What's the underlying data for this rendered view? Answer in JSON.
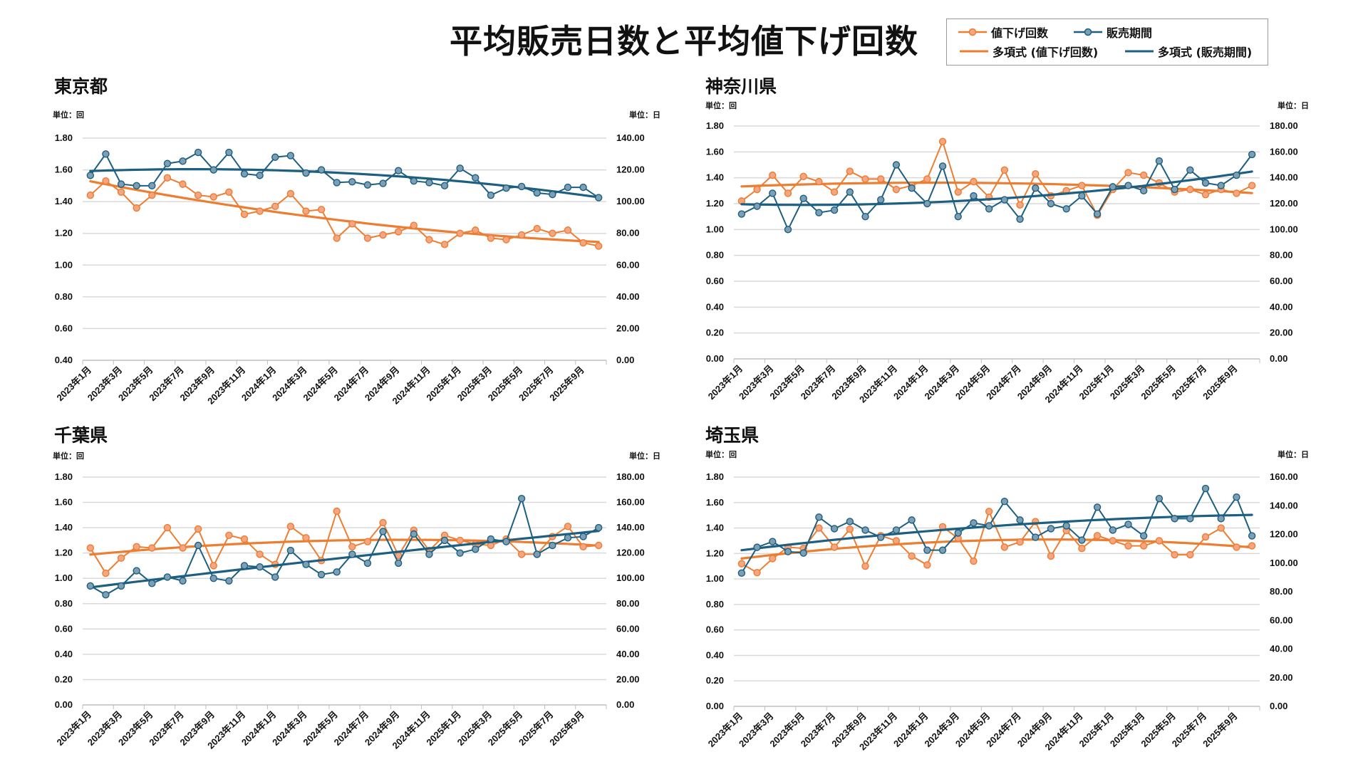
{
  "title": "平均販売日数と平均値下げ回数",
  "legend": {
    "markdown_count": "値下げ回数",
    "selling_period": "販売期間",
    "trend_markdown": "多項式 (値下げ回数)",
    "trend_period": "多項式 (販売期間)"
  },
  "colors": {
    "markdown": "#ed7d31",
    "markdown_marker": "#f4a582",
    "period": "#1c5f80",
    "period_marker": "#7e9fb3",
    "grid": "#d9d9d9"
  },
  "chart_data": [
    {
      "type": "line",
      "title": "東京都",
      "left_unit": "単位：回",
      "right_unit": "単位：日",
      "ylim_left": [
        0.4,
        1.8
      ],
      "ylim_right": [
        0,
        140
      ],
      "left_step": 0.2,
      "right_step": 20,
      "left_ticks": [
        "0.40",
        "0.60",
        "0.80",
        "1.00",
        "1.20",
        "1.40",
        "1.60",
        "1.80"
      ],
      "right_ticks": [
        "0.00",
        "20.00",
        "40.00",
        "60.00",
        "80.00",
        "100.00",
        "120.00",
        "140.00"
      ],
      "x_tick_labels": [
        "2023年1月",
        "2023年3月",
        "2023年5月",
        "2023年7月",
        "2023年9月",
        "2023年11月",
        "2024年1月",
        "2024年3月",
        "2024年5月",
        "2024年7月",
        "2024年9月",
        "2024年11月",
        "2025年1月",
        "2025年3月",
        "2025年5月",
        "2025年7月",
        "2025年9月"
      ],
      "grid": true,
      "trendline": "polynomial",
      "series": [
        {
          "name": "値下げ回数",
          "axis": "left",
          "values": [
            1.44,
            1.53,
            1.46,
            1.36,
            1.44,
            1.55,
            1.51,
            1.44,
            1.43,
            1.46,
            1.32,
            1.34,
            1.37,
            1.45,
            1.34,
            1.35,
            1.17,
            1.26,
            1.17,
            1.19,
            1.21,
            1.25,
            1.16,
            1.13,
            1.2,
            1.22,
            1.17,
            1.16,
            1.19,
            1.23,
            1.2,
            1.22,
            1.14,
            1.12
          ]
        },
        {
          "name": "販売期間",
          "axis": "right",
          "values": [
            116.5,
            130,
            111,
            110,
            110,
            124,
            125.5,
            131,
            120,
            131,
            117.5,
            116.5,
            128,
            129,
            118,
            120,
            112,
            112.5,
            110.5,
            111.5,
            119.5,
            113,
            112,
            110,
            121,
            115,
            104,
            108.5,
            109.5,
            105.5,
            104.5,
            109,
            109,
            102.5
          ]
        }
      ]
    },
    {
      "type": "line",
      "title": "神奈川県",
      "left_unit": "単位：回",
      "right_unit": "単位：日",
      "ylim_left": [
        0,
        1.8
      ],
      "ylim_right": [
        0,
        180
      ],
      "left_ticks": [
        "0.00",
        "0.20",
        "0.40",
        "0.60",
        "0.80",
        "1.00",
        "1.20",
        "1.40",
        "1.60",
        "1.80"
      ],
      "right_ticks": [
        "0.00",
        "20.00",
        "40.00",
        "60.00",
        "80.00",
        "100.00",
        "120.00",
        "140.00",
        "160.00",
        "180.00"
      ],
      "x_tick_labels": [
        "2023年1月",
        "2023年3月",
        "2023年5月",
        "2023年7月",
        "2023年9月",
        "2023年11月",
        "2024年1月",
        "2024年3月",
        "2024年5月",
        "2024年7月",
        "2024年9月",
        "2024年11月",
        "2025年1月",
        "2025年3月",
        "2025年5月",
        "2025年7月",
        "2025年9月"
      ],
      "grid": true,
      "trendline": "polynomial",
      "series": [
        {
          "name": "値下げ回数",
          "axis": "left",
          "values": [
            1.22,
            1.31,
            1.42,
            1.28,
            1.41,
            1.37,
            1.29,
            1.45,
            1.39,
            1.39,
            1.31,
            1.34,
            1.39,
            1.68,
            1.29,
            1.37,
            1.25,
            1.46,
            1.19,
            1.43,
            1.26,
            1.3,
            1.34,
            1.11,
            1.31,
            1.44,
            1.42,
            1.36,
            1.29,
            1.31,
            1.27,
            1.31,
            1.28,
            1.34
          ]
        },
        {
          "name": "販売期間",
          "axis": "right",
          "values": [
            112,
            118,
            128,
            100,
            124,
            113,
            115,
            129,
            110,
            123,
            150,
            132,
            120,
            149,
            110,
            126,
            116,
            123,
            108,
            132,
            120,
            116,
            126,
            112,
            133,
            134,
            130,
            153,
            131,
            146,
            136,
            134,
            142,
            158
          ]
        }
      ]
    },
    {
      "type": "line",
      "title": "千葉県",
      "left_unit": "単位：回",
      "right_unit": "単位：日",
      "ylim_left": [
        0,
        1.8
      ],
      "ylim_right": [
        0,
        180
      ],
      "left_ticks": [
        "0.00",
        "0.20",
        "0.40",
        "0.60",
        "0.80",
        "1.00",
        "1.20",
        "1.40",
        "1.60",
        "1.80"
      ],
      "right_ticks": [
        "0.00",
        "20.00",
        "40.00",
        "60.00",
        "80.00",
        "100.00",
        "120.00",
        "140.00",
        "160.00",
        "180.00"
      ],
      "x_tick_labels": [
        "2023年1月",
        "2023年3月",
        "2023年5月",
        "2023年7月",
        "2023年9月",
        "2023年11月",
        "2024年1月",
        "2024年3月",
        "2024年5月",
        "2024年7月",
        "2024年9月",
        "2024年11月",
        "2025年1月",
        "2025年3月",
        "2025年5月",
        "2025年7月",
        "2025年9月"
      ],
      "grid": true,
      "trendline": "polynomial",
      "series": [
        {
          "name": "値下げ回数",
          "axis": "left",
          "values": [
            1.24,
            1.04,
            1.16,
            1.25,
            1.24,
            1.4,
            1.24,
            1.39,
            1.1,
            1.34,
            1.31,
            1.19,
            1.11,
            1.41,
            1.32,
            1.14,
            1.53,
            1.25,
            1.29,
            1.44,
            1.18,
            1.38,
            1.22,
            1.34,
            1.3,
            1.27,
            1.26,
            1.31,
            1.19,
            1.19,
            1.33,
            1.41,
            1.25,
            1.26
          ]
        },
        {
          "name": "販売期間",
          "axis": "right",
          "values": [
            94,
            87,
            94,
            106,
            96,
            101,
            98,
            126,
            100,
            98,
            110,
            109,
            101,
            122,
            111,
            103,
            105,
            119,
            112,
            137,
            112,
            135,
            119,
            130,
            120,
            123,
            131,
            129,
            163,
            119,
            126,
            132,
            133,
            140
          ]
        }
      ]
    },
    {
      "type": "line",
      "title": "埼玉県",
      "left_unit": "単位：回",
      "right_unit": "単位：日",
      "ylim_left": [
        0,
        1.8
      ],
      "ylim_right": [
        0,
        160
      ],
      "left_ticks": [
        "0.00",
        "0.20",
        "0.40",
        "0.60",
        "0.80",
        "1.00",
        "1.20",
        "1.40",
        "1.60",
        "1.80"
      ],
      "right_ticks": [
        "0.00",
        "20.00",
        "40.00",
        "60.00",
        "80.00",
        "100.00",
        "120.00",
        "140.00",
        "160.00"
      ],
      "x_tick_labels": [
        "2023年1月",
        "2023年3月",
        "2023年5月",
        "2023年7月",
        "2023年9月",
        "2023年11月",
        "2024年1月",
        "2024年3月",
        "2024年5月",
        "2024年7月",
        "2024年9月",
        "2024年11月",
        "2025年1月",
        "2025年3月",
        "2025年5月",
        "2025年7月",
        "2025年9月"
      ],
      "grid": true,
      "trendline": "polynomial",
      "series": [
        {
          "name": "値下げ回数",
          "axis": "left",
          "values": [
            1.12,
            1.05,
            1.16,
            1.25,
            1.24,
            1.4,
            1.25,
            1.39,
            1.1,
            1.34,
            1.3,
            1.18,
            1.11,
            1.41,
            1.32,
            1.14,
            1.53,
            1.25,
            1.29,
            1.45,
            1.18,
            1.38,
            1.24,
            1.34,
            1.3,
            1.26,
            1.26,
            1.3,
            1.19,
            1.19,
            1.33,
            1.4,
            1.25,
            1.26
          ]
        },
        {
          "name": "販売期間",
          "axis": "right",
          "values": [
            93,
            111,
            115,
            108,
            107,
            132,
            124,
            129,
            123,
            118,
            123,
            130,
            109,
            109,
            121,
            128,
            126,
            143,
            130,
            118,
            124,
            126,
            116,
            139,
            123,
            127,
            119,
            145,
            131,
            131,
            152,
            131,
            146,
            119
          ]
        }
      ]
    }
  ]
}
